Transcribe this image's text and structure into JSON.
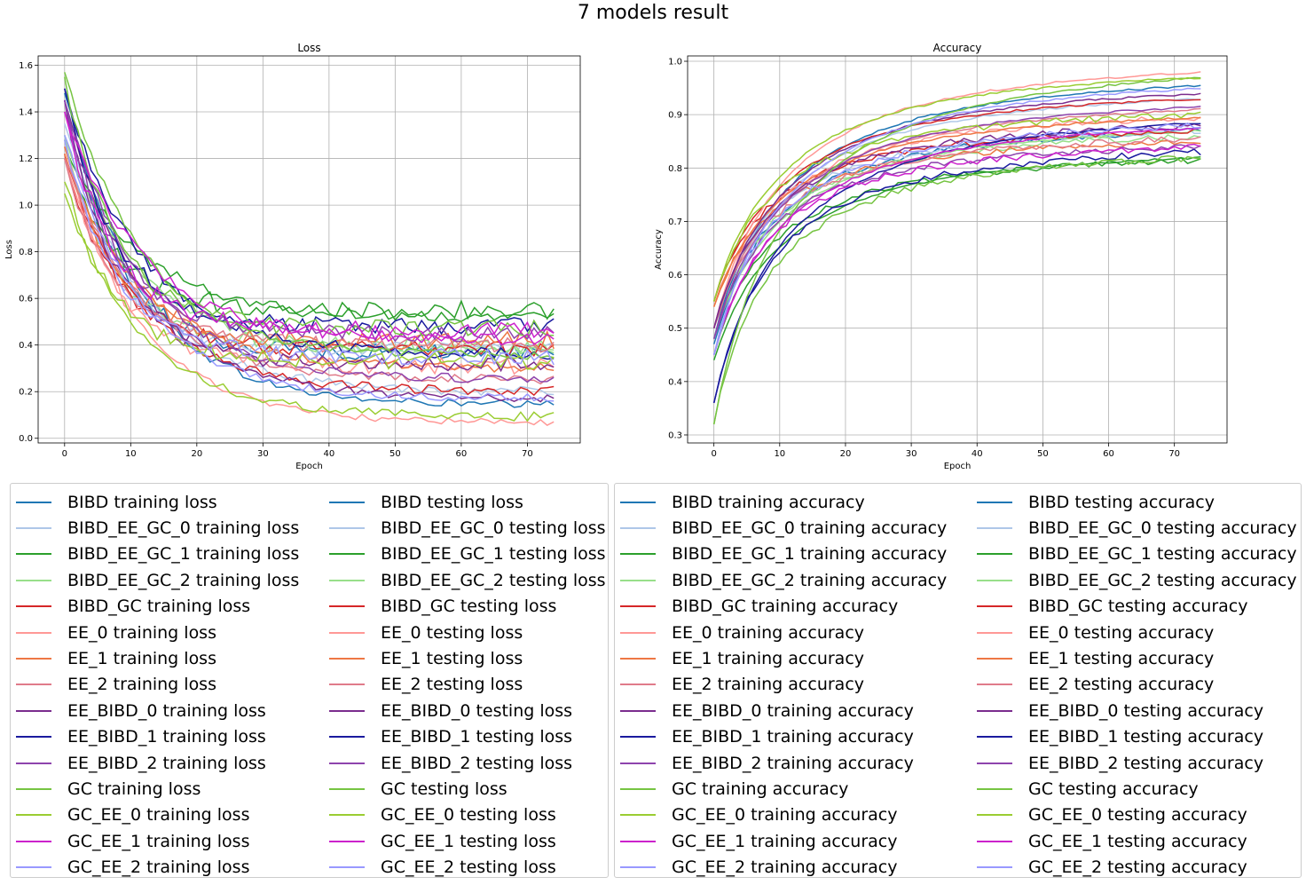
{
  "suptitle": "7 models result",
  "colors": {
    "BIBD": "#1f77b4",
    "BIBD_EE_GC_0": "#aec7e8",
    "BIBD_EE_GC_1": "#2ca02c",
    "BIBD_EE_GC_2": "#98df8a",
    "BIBD_GC": "#d62728",
    "EE_0": "#ff9896",
    "EE_1": "#ee7744",
    "EE_2": "#e07b8a",
    "EE_BIBD_0": "#7b2d8e",
    "EE_BIBD_1": "#1a1a9e",
    "EE_BIBD_2": "#8e44ad",
    "GC": "#76c442",
    "GC_EE_0": "#9acd32",
    "GC_EE_1": "#cc22cc",
    "GC_EE_2": "#9999ff"
  },
  "chart_data": [
    {
      "type": "line",
      "title": "Loss",
      "xlabel": "Epoch",
      "ylabel": "Loss",
      "xlim": [
        -4,
        78
      ],
      "ylim": [
        -0.02,
        1.64
      ],
      "xticks": [
        0,
        10,
        20,
        30,
        40,
        50,
        60,
        70
      ],
      "yticks": [
        0.0,
        0.2,
        0.4,
        0.6,
        0.8,
        1.0,
        1.2,
        1.4,
        1.6
      ],
      "grid": true,
      "epochs": 75,
      "series": [
        {
          "name": "BIBD training loss",
          "model": "BIBD",
          "start": 1.48,
          "end": 0.14,
          "noise": 0.02
        },
        {
          "name": "BIBD testing loss",
          "model": "BIBD",
          "start": 1.45,
          "end": 0.37,
          "noise": 0.035
        },
        {
          "name": "BIBD_EE_GC_0 training loss",
          "model": "BIBD_EE_GC_0",
          "start": 1.35,
          "end": 0.2,
          "noise": 0.02
        },
        {
          "name": "BIBD_EE_GC_0 testing loss",
          "model": "BIBD_EE_GC_0",
          "start": 1.3,
          "end": 0.38,
          "noise": 0.035
        },
        {
          "name": "BIBD_EE_GC_1 training loss",
          "model": "BIBD_EE_GC_1",
          "start": 1.25,
          "end": 0.52,
          "noise": 0.025
        },
        {
          "name": "BIBD_EE_GC_1 testing loss",
          "model": "BIBD_EE_GC_1",
          "start": 1.2,
          "end": 0.55,
          "noise": 0.04
        },
        {
          "name": "BIBD_EE_GC_2 training loss",
          "model": "BIBD_EE_GC_2",
          "start": 1.3,
          "end": 0.37,
          "noise": 0.02
        },
        {
          "name": "BIBD_EE_GC_2 testing loss",
          "model": "BIBD_EE_GC_2",
          "start": 1.28,
          "end": 0.4,
          "noise": 0.035
        },
        {
          "name": "BIBD_GC training loss",
          "model": "BIBD_GC",
          "start": 1.2,
          "end": 0.2,
          "noise": 0.02
        },
        {
          "name": "BIBD_GC testing loss",
          "model": "BIBD_GC",
          "start": 1.22,
          "end": 0.38,
          "noise": 0.035
        },
        {
          "name": "EE_0 training loss",
          "model": "EE_0",
          "start": 1.2,
          "end": 0.065,
          "noise": 0.015
        },
        {
          "name": "EE_0 testing loss",
          "model": "EE_0",
          "start": 1.25,
          "end": 0.31,
          "noise": 0.035
        },
        {
          "name": "EE_1 training loss",
          "model": "EE_1",
          "start": 1.22,
          "end": 0.3,
          "noise": 0.02
        },
        {
          "name": "EE_1 testing loss",
          "model": "EE_1",
          "start": 1.25,
          "end": 0.42,
          "noise": 0.04
        },
        {
          "name": "EE_2 training loss",
          "model": "EE_2",
          "start": 1.2,
          "end": 0.25,
          "noise": 0.02
        },
        {
          "name": "EE_2 testing loss",
          "model": "EE_2",
          "start": 1.2,
          "end": 0.4,
          "noise": 0.035
        },
        {
          "name": "EE_BIBD_0 training loss",
          "model": "EE_BIBD_0",
          "start": 1.45,
          "end": 0.17,
          "noise": 0.02
        },
        {
          "name": "EE_BIBD_0 testing loss",
          "model": "EE_BIBD_0",
          "start": 1.45,
          "end": 0.32,
          "noise": 0.035
        },
        {
          "name": "EE_BIBD_1 training loss",
          "model": "EE_BIBD_1",
          "start": 1.5,
          "end": 0.36,
          "noise": 0.025
        },
        {
          "name": "EE_BIBD_1 testing loss",
          "model": "EE_BIBD_1",
          "start": 1.5,
          "end": 0.48,
          "noise": 0.04
        },
        {
          "name": "EE_BIBD_2 training loss",
          "model": "EE_BIBD_2",
          "start": 1.45,
          "end": 0.25,
          "noise": 0.02
        },
        {
          "name": "EE_BIBD_2 testing loss",
          "model": "EE_BIBD_2",
          "start": 1.45,
          "end": 0.45,
          "noise": 0.035
        },
        {
          "name": "GC training loss",
          "model": "GC",
          "start": 1.57,
          "end": 0.35,
          "noise": 0.02
        },
        {
          "name": "GC testing loss",
          "model": "GC",
          "start": 1.55,
          "end": 0.47,
          "noise": 0.04
        },
        {
          "name": "GC_EE_0 training loss",
          "model": "GC_EE_0",
          "start": 1.05,
          "end": 0.09,
          "noise": 0.02
        },
        {
          "name": "GC_EE_0 testing loss",
          "model": "GC_EE_0",
          "start": 1.1,
          "end": 0.33,
          "noise": 0.035
        },
        {
          "name": "GC_EE_1 training loss",
          "model": "GC_EE_1",
          "start": 1.4,
          "end": 0.42,
          "noise": 0.025
        },
        {
          "name": "GC_EE_1 testing loss",
          "model": "GC_EE_1",
          "start": 1.4,
          "end": 0.46,
          "noise": 0.04
        },
        {
          "name": "GC_EE_2 training loss",
          "model": "GC_EE_2",
          "start": 1.3,
          "end": 0.17,
          "noise": 0.02
        },
        {
          "name": "GC_EE_2 testing loss",
          "model": "GC_EE_2",
          "start": 1.28,
          "end": 0.35,
          "noise": 0.035
        }
      ]
    },
    {
      "type": "line",
      "title": "Accuracy",
      "xlabel": "Epoch",
      "ylabel": "Accuracy",
      "xlim": [
        -4,
        78
      ],
      "ylim": [
        0.285,
        1.01
      ],
      "xticks": [
        0,
        10,
        20,
        30,
        40,
        50,
        60,
        70
      ],
      "yticks": [
        0.3,
        0.4,
        0.5,
        0.6,
        0.7,
        0.8,
        0.9,
        1.0
      ],
      "grid": true,
      "epochs": 75,
      "series": [
        {
          "name": "BIBD training accuracy",
          "model": "BIBD",
          "start": 0.48,
          "end": 0.955,
          "noise": 0.002
        },
        {
          "name": "BIBD testing accuracy",
          "model": "BIBD",
          "start": 0.47,
          "end": 0.87,
          "noise": 0.006
        },
        {
          "name": "BIBD_EE_GC_0 training accuracy",
          "model": "BIBD_EE_GC_0",
          "start": 0.5,
          "end": 0.93,
          "noise": 0.002
        },
        {
          "name": "BIBD_EE_GC_0 testing accuracy",
          "model": "BIBD_EE_GC_0",
          "start": 0.5,
          "end": 0.87,
          "noise": 0.006
        },
        {
          "name": "BIBD_EE_GC_1 training accuracy",
          "model": "BIBD_EE_GC_1",
          "start": 0.44,
          "end": 0.82,
          "noise": 0.002
        },
        {
          "name": "BIBD_EE_GC_1 testing accuracy",
          "model": "BIBD_EE_GC_1",
          "start": 0.45,
          "end": 0.815,
          "noise": 0.006
        },
        {
          "name": "BIBD_EE_GC_2 training accuracy",
          "model": "BIBD_EE_GC_2",
          "start": 0.48,
          "end": 0.87,
          "noise": 0.002
        },
        {
          "name": "BIBD_EE_GC_2 testing accuracy",
          "model": "BIBD_EE_GC_2",
          "start": 0.48,
          "end": 0.86,
          "noise": 0.006
        },
        {
          "name": "BIBD_GC training accuracy",
          "model": "BIBD_GC",
          "start": 0.55,
          "end": 0.93,
          "noise": 0.002
        },
        {
          "name": "BIBD_GC testing accuracy",
          "model": "BIBD_GC",
          "start": 0.55,
          "end": 0.87,
          "noise": 0.006
        },
        {
          "name": "EE_0 training accuracy",
          "model": "EE_0",
          "start": 0.5,
          "end": 0.98,
          "noise": 0.002
        },
        {
          "name": "EE_0 testing accuracy",
          "model": "EE_0",
          "start": 0.5,
          "end": 0.895,
          "noise": 0.006
        },
        {
          "name": "EE_1 training accuracy",
          "model": "EE_1",
          "start": 0.54,
          "end": 0.895,
          "noise": 0.002
        },
        {
          "name": "EE_1 testing accuracy",
          "model": "EE_1",
          "start": 0.54,
          "end": 0.85,
          "noise": 0.006
        },
        {
          "name": "EE_2 training accuracy",
          "model": "EE_2",
          "start": 0.5,
          "end": 0.91,
          "noise": 0.002
        },
        {
          "name": "EE_2 testing accuracy",
          "model": "EE_2",
          "start": 0.5,
          "end": 0.855,
          "noise": 0.006
        },
        {
          "name": "EE_BIBD_0 training accuracy",
          "model": "EE_BIBD_0",
          "start": 0.5,
          "end": 0.94,
          "noise": 0.002
        },
        {
          "name": "EE_BIBD_0 testing accuracy",
          "model": "EE_BIBD_0",
          "start": 0.5,
          "end": 0.88,
          "noise": 0.006
        },
        {
          "name": "EE_BIBD_1 training accuracy",
          "model": "EE_BIBD_1",
          "start": 0.36,
          "end": 0.885,
          "noise": 0.002
        },
        {
          "name": "EE_BIBD_1 testing accuracy",
          "model": "EE_BIBD_1",
          "start": 0.36,
          "end": 0.83,
          "noise": 0.006
        },
        {
          "name": "EE_BIBD_2 training accuracy",
          "model": "EE_BIBD_2",
          "start": 0.48,
          "end": 0.915,
          "noise": 0.002
        },
        {
          "name": "EE_BIBD_2 testing accuracy",
          "model": "EE_BIBD_2",
          "start": 0.48,
          "end": 0.84,
          "noise": 0.006
        },
        {
          "name": "GC training accuracy",
          "model": "GC",
          "start": 0.32,
          "end": 0.97,
          "noise": 0.002
        },
        {
          "name": "GC testing accuracy",
          "model": "GC",
          "start": 0.32,
          "end": 0.82,
          "noise": 0.006
        },
        {
          "name": "GC_EE_0 training accuracy",
          "model": "GC_EE_0",
          "start": 0.55,
          "end": 0.97,
          "noise": 0.002
        },
        {
          "name": "GC_EE_0 testing accuracy",
          "model": "GC_EE_0",
          "start": 0.55,
          "end": 0.9,
          "noise": 0.006
        },
        {
          "name": "GC_EE_1 training accuracy",
          "model": "GC_EE_1",
          "start": 0.45,
          "end": 0.875,
          "noise": 0.002
        },
        {
          "name": "GC_EE_1 testing accuracy",
          "model": "GC_EE_1",
          "start": 0.45,
          "end": 0.84,
          "noise": 0.006
        },
        {
          "name": "GC_EE_2 training accuracy",
          "model": "GC_EE_2",
          "start": 0.45,
          "end": 0.95,
          "noise": 0.002
        },
        {
          "name": "GC_EE_2 testing accuracy",
          "model": "GC_EE_2",
          "start": 0.45,
          "end": 0.88,
          "noise": 0.006
        }
      ]
    }
  ],
  "legends": [
    {
      "columns": [
        [
          "BIBD training loss",
          "BIBD_EE_GC_0 training loss",
          "BIBD_EE_GC_1 training loss",
          "BIBD_EE_GC_2 training loss",
          "BIBD_GC training loss",
          "EE_0 training loss",
          "EE_1 training loss",
          "EE_2 training loss",
          "EE_BIBD_0 training loss",
          "EE_BIBD_1 training loss",
          "EE_BIBD_2 training loss",
          "GC training loss",
          "GC_EE_0 training loss",
          "GC_EE_1 training loss",
          "GC_EE_2 training loss"
        ],
        [
          "BIBD testing loss",
          "BIBD_EE_GC_0 testing loss",
          "BIBD_EE_GC_1 testing loss",
          "BIBD_EE_GC_2 testing loss",
          "BIBD_GC testing loss",
          "EE_0 testing loss",
          "EE_1 testing loss",
          "EE_2 testing loss",
          "EE_BIBD_0 testing loss",
          "EE_BIBD_1 testing loss",
          "EE_BIBD_2 testing loss",
          "GC testing loss",
          "GC_EE_0 testing loss",
          "GC_EE_1 testing loss",
          "GC_EE_2 testing loss"
        ]
      ]
    },
    {
      "columns": [
        [
          "BIBD training accuracy",
          "BIBD_EE_GC_0 training accuracy",
          "BIBD_EE_GC_1 training accuracy",
          "BIBD_EE_GC_2 training accuracy",
          "BIBD_GC training accuracy",
          "EE_0 training accuracy",
          "EE_1 training accuracy",
          "EE_2 training accuracy",
          "EE_BIBD_0 training accuracy",
          "EE_BIBD_1 training accuracy",
          "EE_BIBD_2 training accuracy",
          "GC training accuracy",
          "GC_EE_0 training accuracy",
          "GC_EE_1 training accuracy",
          "GC_EE_2 training accuracy"
        ],
        [
          "BIBD testing accuracy",
          "BIBD_EE_GC_0 testing accuracy",
          "BIBD_EE_GC_1 testing accuracy",
          "BIBD_EE_GC_2 testing accuracy",
          "BIBD_GC testing accuracy",
          "EE_0 testing accuracy",
          "EE_1 testing accuracy",
          "EE_2 testing accuracy",
          "EE_BIBD_0 testing accuracy",
          "EE_BIBD_1 testing accuracy",
          "EE_BIBD_2 testing accuracy",
          "GC testing accuracy",
          "GC_EE_0 testing accuracy",
          "GC_EE_1 testing accuracy",
          "GC_EE_2 testing accuracy"
        ]
      ]
    }
  ]
}
